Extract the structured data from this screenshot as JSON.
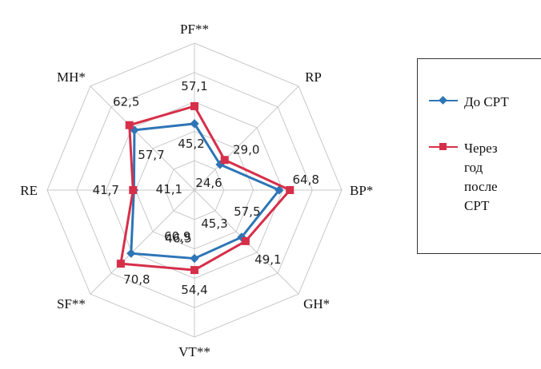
{
  "chart_data": {
    "type": "radar",
    "axes": [
      "PF**",
      "RP",
      "BP*",
      "GH*",
      "VT**",
      "SF**",
      "RE",
      "MH*"
    ],
    "rlim": [
      0,
      100
    ],
    "grid_levels": [
      20,
      40,
      60,
      80,
      100
    ],
    "grid": true,
    "legend_position": "right",
    "series": [
      {
        "name": "До СРТ",
        "color": "#2E75B6",
        "marker": "diamond",
        "values": [
          45.2,
          24.6,
          57.5,
          45.3,
          46.5,
          60.9,
          41.1,
          57.7
        ],
        "labels": [
          "45,2",
          "24,6",
          "57,5",
          "45,3",
          "46,5",
          "60,9",
          "41,1",
          "57,7"
        ]
      },
      {
        "name": "Через год после СРТ",
        "color": "#D62F4A",
        "marker": "square",
        "values": [
          57.1,
          29.0,
          64.8,
          49.1,
          54.4,
          70.8,
          41.7,
          62.5
        ],
        "labels": [
          "57,1",
          "29,0",
          "64,8",
          "49,1",
          "54,4",
          "70,8",
          "41,7",
          "62,5"
        ]
      }
    ]
  },
  "legend": {
    "items": [
      {
        "label": "До СРТ",
        "color": "#2E75B6"
      },
      {
        "label": "Через\nгод\nпосле\nСРТ",
        "color": "#D62F4A"
      }
    ]
  }
}
